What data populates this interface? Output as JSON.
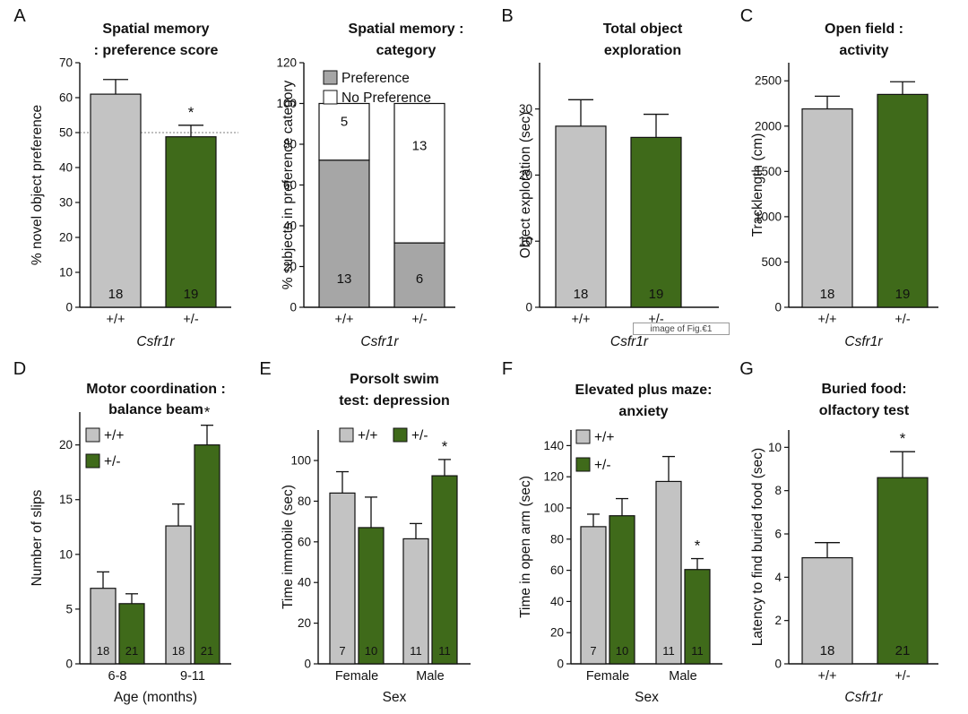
{
  "figure_tooltip": "image of Fig.€1",
  "colors": {
    "wt": "#c3c3c3",
    "het": "#3f6a1a",
    "pref": "#a6a6a6",
    "nopref": "#ffffff",
    "axis": "#111111"
  },
  "chart_data": [
    {
      "id": "A1",
      "type": "bar",
      "panel_letter": "A",
      "title_lines": [
        "Spatial memory",
        ": preference score"
      ],
      "title": "Spatial memory : preference score",
      "ylabel": "% novel object preference",
      "xlabel": "Csfr1r",
      "ylim": [
        0,
        70
      ],
      "yticks": [
        0,
        10,
        20,
        30,
        40,
        50,
        60,
        70
      ],
      "reference_line": 50,
      "categories": [
        "+/+",
        "+/-"
      ],
      "values": [
        61,
        48.8
      ],
      "errors": [
        4.2,
        3.3
      ],
      "n": [
        "18",
        "19"
      ],
      "significance": [
        "",
        "*"
      ]
    },
    {
      "id": "A2",
      "type": "bar",
      "stacked": true,
      "title_lines": [
        "Spatial memory :",
        "category"
      ],
      "title": "Spatial memory : category",
      "ylabel": "% subjects in preference category",
      "xlabel": "Csfr1r",
      "ylim": [
        0,
        120
      ],
      "yticks": [
        0,
        20,
        40,
        60,
        80,
        100,
        120
      ],
      "categories": [
        "+/+",
        "+/-"
      ],
      "legend": [
        "Preference",
        "No Preference"
      ],
      "series": [
        {
          "name": "Preference",
          "values": [
            72.2,
            31.6
          ],
          "counts": [
            "13",
            "6"
          ]
        },
        {
          "name": "No Preference",
          "values": [
            27.8,
            68.4
          ],
          "counts": [
            "5",
            "13"
          ]
        }
      ]
    },
    {
      "id": "B",
      "type": "bar",
      "panel_letter": "B",
      "title_lines": [
        "Total object",
        "exploration"
      ],
      "title": "Total object exploration",
      "ylabel": "Object exploration (sec)",
      "xlabel": "Csfr1r",
      "ylim": [
        0,
        37
      ],
      "yticks": [
        0,
        10,
        20,
        30
      ],
      "categories": [
        "+/+",
        "+/-"
      ],
      "values": [
        27.4,
        25.7
      ],
      "errors": [
        4.0,
        3.5
      ],
      "n": [
        "18",
        "19"
      ],
      "significance": [
        "",
        ""
      ]
    },
    {
      "id": "C",
      "type": "bar",
      "panel_letter": "C",
      "title_lines": [
        "Open field :",
        "activity"
      ],
      "title": "Open field : activity",
      "ylabel": "Tracklength (cm)",
      "xlabel": "Csfr1r",
      "ylim": [
        0,
        2700
      ],
      "yticks": [
        0,
        500,
        1000,
        1500,
        2000,
        2500
      ],
      "categories": [
        "+/+",
        "+/-"
      ],
      "values": [
        2190,
        2350
      ],
      "errors": [
        140,
        140
      ],
      "n": [
        "18",
        "19"
      ],
      "significance": [
        "",
        ""
      ]
    },
    {
      "id": "D",
      "type": "bar",
      "grouped": true,
      "panel_letter": "D",
      "title_lines": [
        "Motor coordination :",
        "balance beam"
      ],
      "title": "Motor coordination : balance beam",
      "ylabel": "Number of slips",
      "xlabel": "Age (months)",
      "ylim": [
        0,
        23
      ],
      "yticks": [
        0,
        5,
        10,
        15,
        20
      ],
      "groups": [
        "6-8",
        "9-11"
      ],
      "legend": [
        "+/+",
        "+/-"
      ],
      "series": [
        {
          "name": "+/+",
          "values": [
            6.9,
            12.6
          ],
          "errors": [
            1.5,
            2.0
          ],
          "n": [
            "18",
            "18"
          ],
          "significance": [
            "",
            ""
          ]
        },
        {
          "name": "+/-",
          "values": [
            5.5,
            20.0
          ],
          "errors": [
            0.9,
            1.8
          ],
          "n": [
            "21",
            "21"
          ],
          "significance": [
            "",
            "*"
          ]
        }
      ]
    },
    {
      "id": "E",
      "type": "bar",
      "grouped": true,
      "panel_letter": "E",
      "title_lines": [
        "Porsolt swim",
        "test: depression"
      ],
      "title": "Porsolt swim test: depression",
      "ylabel": "Time immobile (sec)",
      "xlabel": "Sex",
      "ylim": [
        0,
        115
      ],
      "yticks": [
        0,
        20,
        40,
        60,
        80,
        100
      ],
      "groups": [
        "Female",
        "Male"
      ],
      "legend": [
        "+/+",
        "+/-"
      ],
      "series": [
        {
          "name": "+/+",
          "values": [
            84,
            61.5
          ],
          "errors": [
            10.5,
            7.5
          ],
          "n": [
            "7",
            "11"
          ],
          "significance": [
            "",
            ""
          ]
        },
        {
          "name": "+/-",
          "values": [
            67,
            92.5
          ],
          "errors": [
            15,
            8
          ],
          "n": [
            "10",
            "11"
          ],
          "significance": [
            "",
            "*"
          ]
        }
      ]
    },
    {
      "id": "F",
      "type": "bar",
      "grouped": true,
      "panel_letter": "F",
      "title_lines": [
        "Elevated plus maze:",
        "anxiety"
      ],
      "title": "Elevated plus maze: anxiety",
      "ylabel": "Time in open arm (sec)",
      "xlabel": "Sex",
      "ylim": [
        0,
        150
      ],
      "yticks": [
        0,
        20,
        40,
        60,
        80,
        100,
        120,
        140
      ],
      "groups": [
        "Female",
        "Male"
      ],
      "legend": [
        "+/+",
        "+/-"
      ],
      "series": [
        {
          "name": "+/+",
          "values": [
            88,
            117
          ],
          "errors": [
            8,
            16
          ],
          "n": [
            "7",
            "11"
          ],
          "significance": [
            "",
            ""
          ]
        },
        {
          "name": "+/-",
          "values": [
            95,
            60.5
          ],
          "errors": [
            11,
            7
          ],
          "n": [
            "10",
            "11"
          ],
          "significance": [
            "",
            "*"
          ]
        }
      ]
    },
    {
      "id": "G",
      "type": "bar",
      "panel_letter": "G",
      "title_lines": [
        "Buried food:",
        "olfactory test"
      ],
      "title": "Buried food: olfactory test",
      "ylabel": "Latency to find buried food (sec)",
      "xlabel": "Csfr1r",
      "ylim": [
        0,
        10.8
      ],
      "yticks": [
        0,
        2,
        4,
        6,
        8,
        10
      ],
      "categories": [
        "+/+",
        "+/-"
      ],
      "values": [
        4.9,
        8.6
      ],
      "errors": [
        0.7,
        1.2
      ],
      "n": [
        "18",
        "21"
      ],
      "significance": [
        "",
        "*"
      ]
    }
  ]
}
